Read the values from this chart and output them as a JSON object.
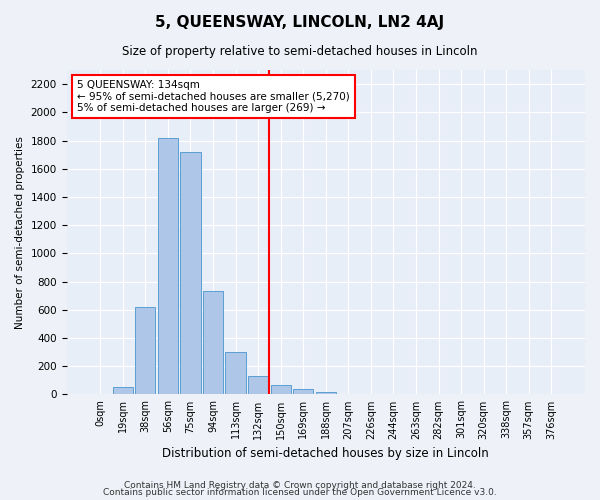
{
  "title": "5, QUEENSWAY, LINCOLN, LN2 4AJ",
  "subtitle": "Size of property relative to semi-detached houses in Lincoln",
  "xlabel": "Distribution of semi-detached houses by size in Lincoln",
  "ylabel": "Number of semi-detached properties",
  "footer1": "Contains HM Land Registry data © Crown copyright and database right 2024.",
  "footer2": "Contains public sector information licensed under the Open Government Licence v3.0.",
  "bar_labels": [
    "0sqm",
    "19sqm",
    "38sqm",
    "56sqm",
    "75sqm",
    "94sqm",
    "113sqm",
    "132sqm",
    "150sqm",
    "169sqm",
    "188sqm",
    "207sqm",
    "226sqm",
    "244sqm",
    "263sqm",
    "282sqm",
    "301sqm",
    "320sqm",
    "338sqm",
    "357sqm",
    "376sqm"
  ],
  "bar_values": [
    0,
    50,
    620,
    1820,
    1720,
    730,
    300,
    130,
    65,
    40,
    20,
    5,
    0,
    0,
    0,
    0,
    0,
    0,
    0,
    0,
    0
  ],
  "bar_color": "#aec6e8",
  "bar_edge_color": "#5a9fd4",
  "ylim": [
    0,
    2300
  ],
  "yticks": [
    0,
    200,
    400,
    600,
    800,
    1000,
    1200,
    1400,
    1600,
    1800,
    2000,
    2200
  ],
  "property_label": "5 QUEENSWAY: 134sqm",
  "pct_smaller": 95,
  "count_smaller": 5270,
  "pct_larger": 5,
  "count_larger": 269,
  "bg_color": "#eef2f8",
  "plot_bg_color": "#e8eef8"
}
